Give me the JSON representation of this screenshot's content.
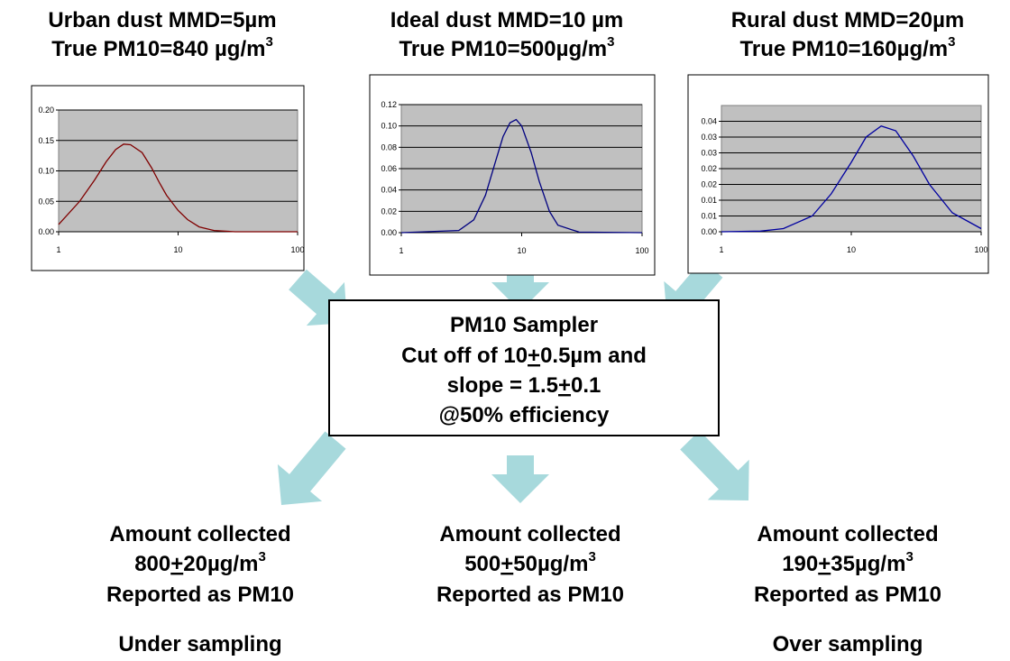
{
  "titles": [
    {
      "line1": "Urban dust MMD=5µm",
      "line2": "True PM10=840 µg/m",
      "sup": "3"
    },
    {
      "line1": "Ideal dust MMD=10 µm",
      "line2": "True PM10=500µg/m",
      "sup": "3"
    },
    {
      "line1": "Rural dust MMD=20µm",
      "line2": "True PM10=160µg/m",
      "sup": "3"
    }
  ],
  "charts": [
    {
      "type": "line",
      "color": "#800000",
      "xscale": "log",
      "grid": true,
      "xlim": [
        1,
        100
      ],
      "ylim": [
        0,
        0.2
      ],
      "xticks": [
        1,
        10,
        100
      ],
      "yticks": [
        {
          "value": 0,
          "label": "0.00"
        },
        {
          "value": 0.05,
          "label": "0.05"
        },
        {
          "value": 0.1,
          "label": "0.10"
        },
        {
          "value": 0.15,
          "label": "0.15"
        },
        {
          "value": 0.2,
          "label": "0.20"
        }
      ],
      "x": [
        1,
        1.5,
        2,
        2.5,
        3,
        3.5,
        4,
        5,
        6,
        7,
        8,
        10,
        12,
        15,
        20,
        30,
        50,
        100
      ],
      "values": [
        0.012,
        0.05,
        0.085,
        0.115,
        0.135,
        0.144,
        0.143,
        0.13,
        0.105,
        0.08,
        0.06,
        0.035,
        0.02,
        0.008,
        0.002,
        0,
        0,
        0
      ]
    },
    {
      "type": "line",
      "color": "#000080",
      "xscale": "log",
      "grid": true,
      "xlim": [
        1,
        100
      ],
      "ylim": [
        0,
        0.12
      ],
      "xticks": [
        1,
        10,
        100
      ],
      "yticks": [
        {
          "value": 0,
          "label": "0.00"
        },
        {
          "value": 0.02,
          "label": "0.02"
        },
        {
          "value": 0.04,
          "label": "0.04"
        },
        {
          "value": 0.06,
          "label": "0.06"
        },
        {
          "value": 0.08,
          "label": "0.08"
        },
        {
          "value": 0.1,
          "label": "0.10"
        },
        {
          "value": 0.12,
          "label": "0.12"
        }
      ],
      "x": [
        1,
        3,
        4,
        5,
        6,
        7,
        8,
        9,
        10,
        12,
        14,
        17,
        20,
        30,
        100
      ],
      "values": [
        0,
        0.002,
        0.012,
        0.035,
        0.065,
        0.09,
        0.103,
        0.106,
        0.1,
        0.075,
        0.048,
        0.02,
        0.007,
        0.0005,
        0
      ]
    },
    {
      "type": "line",
      "color": "#0000a0",
      "xscale": "log",
      "grid": true,
      "xlim": [
        1,
        100
      ],
      "ylim": [
        0,
        0.04
      ],
      "xticks": [
        1,
        10,
        100
      ],
      "yticks": [
        {
          "value": 0,
          "label": "0.00"
        },
        {
          "value": 0.005,
          "label": "0.01"
        },
        {
          "value": 0.01,
          "label": "0.01"
        },
        {
          "value": 0.015,
          "label": "0.02"
        },
        {
          "value": 0.02,
          "label": "0.02"
        },
        {
          "value": 0.025,
          "label": "0.03"
        },
        {
          "value": 0.03,
          "label": "0.03"
        },
        {
          "value": 0.035,
          "label": "0.04"
        }
      ],
      "x": [
        1,
        2,
        3,
        5,
        7,
        10,
        13,
        17,
        22,
        30,
        40,
        60,
        100
      ],
      "values": [
        0,
        0.0002,
        0.001,
        0.005,
        0.012,
        0.022,
        0.03,
        0.0335,
        0.032,
        0.024,
        0.015,
        0.006,
        0.001
      ]
    }
  ],
  "sampler": {
    "line1": "PM10 Sampler",
    "line2a": "Cut off of 10",
    "pm": "+",
    "line2b": "0.5µm and",
    "line3a": "slope = 1.5",
    "line3b": "0.1",
    "line4": "@50% efficiency"
  },
  "results": [
    {
      "line1": "Amount collected",
      "value": "800",
      "pm": "+",
      "tolerance": "20µg/m",
      "sup": "3",
      "line3": "Reported as PM10",
      "note": "Under sampling"
    },
    {
      "line1": "Amount collected",
      "value": "500",
      "pm": "+",
      "tolerance": "50µg/m",
      "sup": "3",
      "line3": "Reported as PM10"
    },
    {
      "line1": "Amount collected",
      "value": "190",
      "pm": "+",
      "tolerance": "35µg/m",
      "sup": "3",
      "line3": "Reported as PM10",
      "note": "Over sampling"
    }
  ]
}
